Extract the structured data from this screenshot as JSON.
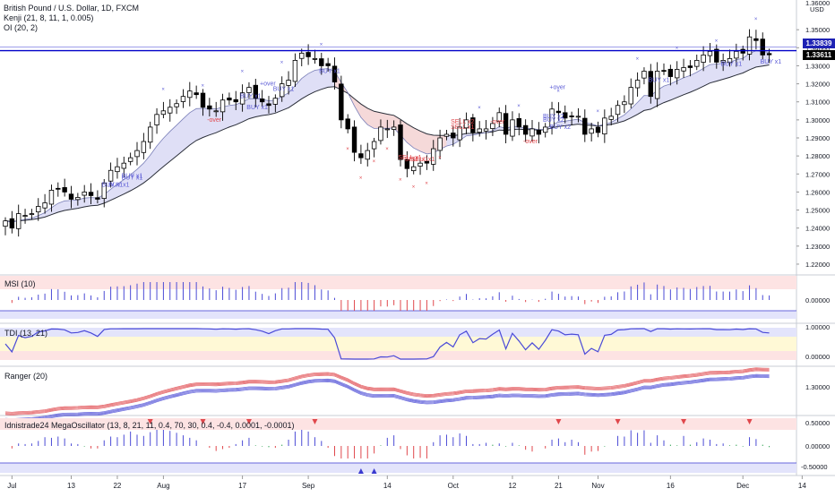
{
  "header": {
    "symbol_title": "British Pound / U.S. Dollar, 1D, FXCM",
    "indicators": [
      "Kenji (21, 8, 11, 1, 0.005)",
      "OI (20, 2)"
    ]
  },
  "price_axis": {
    "currency": "USD",
    "ticks": [
      "1.35000",
      "1.34000",
      "1.33000",
      "1.32000",
      "1.31000",
      "1.30000",
      "1.29000",
      "1.28000",
      "1.27000",
      "1.26000",
      "1.25000",
      "1.24000",
      "1.23000",
      "1.22000"
    ],
    "top_partial": "1.36000",
    "ylim": [
      1.2175,
      1.3625
    ],
    "current_price": "1.33839",
    "current_price_value": 1.33839,
    "last_price": "1.33611",
    "last_price_value": 1.33611
  },
  "panes": {
    "msi": {
      "label": "MSI (10)",
      "tick": "0.00000"
    },
    "tdi": {
      "label": "TDI (13, 21)",
      "ticks": [
        "1.00000",
        "0.00000"
      ]
    },
    "ranger": {
      "label": "Ranger (20)",
      "tick": "1.30000"
    },
    "mega": {
      "label": "Idnistrade24 MegaOscillator (13, 8, 21, 11, 0.4, 70, 30, 0.4, -0.4, 0.0001, -0.0001)",
      "ticks": [
        "0.50000",
        "0.00000",
        "-0.50000"
      ]
    }
  },
  "time_axis": {
    "labels": [
      "Jul",
      "13",
      "22",
      "Aug",
      "17",
      "Sep",
      "14",
      "Oct",
      "12",
      "21",
      "Nov",
      "16",
      "Dec",
      "14"
    ]
  },
  "signals": [
    {
      "text": "BUY x1",
      "kind": "buy"
    },
    {
      "text": "BUY x1",
      "kind": "buy"
    },
    {
      "text": "BUY x1",
      "kind": "buy"
    },
    {
      "text": "BUY x1",
      "kind": "buy"
    },
    {
      "text": "BUY x1",
      "kind": "buy"
    },
    {
      "text": "BUY x1",
      "kind": "buy"
    },
    {
      "text": "BUY x1",
      "kind": "buy"
    },
    {
      "text": "-over",
      "kind": "sell"
    },
    {
      "text": "+over",
      "kind": "buy"
    },
    {
      "text": "BUY x1",
      "kind": "buy"
    },
    {
      "text": "SELL x1",
      "kind": "sell"
    },
    {
      "text": "SELL x1",
      "kind": "sell"
    },
    {
      "text": "SELL x1",
      "kind": "sell"
    },
    {
      "text": "SELL x2",
      "kind": "sell"
    },
    {
      "text": "SELL x1",
      "kind": "sell"
    },
    {
      "text": "-over",
      "kind": "sell"
    },
    {
      "text": "-over",
      "kind": "sell"
    },
    {
      "text": "BUY x2",
      "kind": "buy"
    },
    {
      "text": "BUY x2",
      "kind": "buy"
    },
    {
      "text": "BUY x2",
      "kind": "buy"
    },
    {
      "text": "+over",
      "kind": "buy"
    },
    {
      "text": "BUY x1",
      "kind": "buy"
    },
    {
      "text": "BUY x1",
      "kind": "buy"
    },
    {
      "text": "BUY x1",
      "kind": "buy"
    }
  ],
  "colors": {
    "bull": "#ffffff",
    "bear": "#000000",
    "line": "#0000c8",
    "buy": "#5b5bd6",
    "sell": "#e0474c",
    "band_fill": "#dcdcf5",
    "band_fill_sell": "#f5d9d9",
    "hist_blue": "#4b4bd6",
    "hist_red": "#e0474c",
    "hist_green": "#31a354",
    "tdi_zone": "#fff9d6",
    "ob_zone": "#fde3e3",
    "os_zone": "#e3e4fb"
  },
  "chart_data": {
    "type": "candlestick",
    "timeframe": "1D",
    "x": [
      "Jun 29",
      "Jun 30",
      "Jul 1",
      "Jul 2",
      "Jul 3",
      "Jul 6",
      "Jul 7",
      "Jul 8",
      "Jul 9",
      "Jul 10",
      "Jul 13",
      "Jul 14",
      "Jul 15",
      "Jul 16",
      "Jul 17",
      "Jul 20",
      "Jul 21",
      "Jul 22",
      "Jul 23",
      "Jul 24",
      "Jul 27",
      "Jul 28",
      "Jul 29",
      "Jul 30",
      "Jul 31",
      "Aug 3",
      "Aug 4",
      "Aug 5",
      "Aug 6",
      "Aug 7",
      "Aug 10",
      "Aug 11",
      "Aug 12",
      "Aug 13",
      "Aug 14",
      "Aug 17",
      "Aug 18",
      "Aug 19",
      "Aug 20",
      "Aug 21",
      "Aug 24",
      "Aug 25",
      "Aug 26",
      "Aug 27",
      "Aug 28",
      "Aug 31",
      "Sep 1",
      "Sep 2",
      "Sep 3",
      "Sep 4",
      "Sep 7",
      "Sep 8",
      "Sep 9",
      "Sep 10",
      "Sep 11",
      "Sep 14",
      "Sep 15",
      "Sep 16",
      "Sep 17",
      "Sep 18",
      "Sep 21",
      "Sep 22",
      "Sep 23",
      "Sep 24",
      "Sep 25",
      "Sep 28",
      "Sep 29",
      "Sep 30",
      "Oct 1",
      "Oct 2",
      "Oct 5",
      "Oct 6",
      "Oct 7",
      "Oct 8",
      "Oct 9",
      "Oct 12",
      "Oct 13",
      "Oct 14",
      "Oct 15",
      "Oct 16",
      "Oct 19",
      "Oct 20",
      "Oct 21",
      "Oct 22",
      "Oct 23",
      "Oct 26",
      "Oct 27",
      "Oct 28",
      "Oct 29",
      "Oct 30",
      "Nov 2",
      "Nov 3",
      "Nov 4",
      "Nov 5",
      "Nov 6",
      "Nov 9",
      "Nov 10",
      "Nov 11",
      "Nov 12",
      "Nov 13",
      "Nov 16",
      "Nov 17",
      "Nov 18",
      "Nov 19",
      "Nov 20",
      "Nov 23",
      "Nov 24",
      "Nov 25",
      "Nov 26",
      "Nov 27",
      "Nov 30",
      "Dec 1",
      "Dec 2",
      "Dec 3",
      "Dec 4",
      "Dec 7",
      "Dec 8"
    ],
    "close": [
      1.244,
      1.24,
      1.248,
      1.247,
      1.248,
      1.252,
      1.254,
      1.261,
      1.262,
      1.26,
      1.256,
      1.257,
      1.26,
      1.258,
      1.256,
      1.265,
      1.272,
      1.274,
      1.276,
      1.279,
      1.283,
      1.288,
      1.296,
      1.303,
      1.305,
      1.307,
      1.309,
      1.313,
      1.316,
      1.314,
      1.307,
      1.306,
      1.305,
      1.311,
      1.311,
      1.31,
      1.315,
      1.318,
      1.312,
      1.31,
      1.308,
      1.312,
      1.32,
      1.322,
      1.333,
      1.337,
      1.335,
      1.334,
      1.33,
      1.33,
      1.321,
      1.3,
      1.295,
      1.282,
      1.279,
      1.283,
      1.288,
      1.296,
      1.295,
      1.296,
      1.278,
      1.273,
      1.274,
      1.276,
      1.276,
      1.284,
      1.29,
      1.292,
      1.29,
      1.296,
      1.3,
      1.293,
      1.295,
      1.295,
      1.298,
      1.304,
      1.292,
      1.3,
      1.296,
      1.292,
      1.295,
      1.292,
      1.296,
      1.306,
      1.304,
      1.301,
      1.302,
      1.302,
      1.292,
      1.295,
      1.293,
      1.301,
      1.302,
      1.308,
      1.31,
      1.318,
      1.322,
      1.327,
      1.313,
      1.327,
      1.327,
      1.324,
      1.328,
      1.329,
      1.329,
      1.333,
      1.336,
      1.338,
      1.332,
      1.333,
      1.334,
      1.338,
      1.337,
      1.346,
      1.344,
      1.336,
      1.3361
    ]
  }
}
